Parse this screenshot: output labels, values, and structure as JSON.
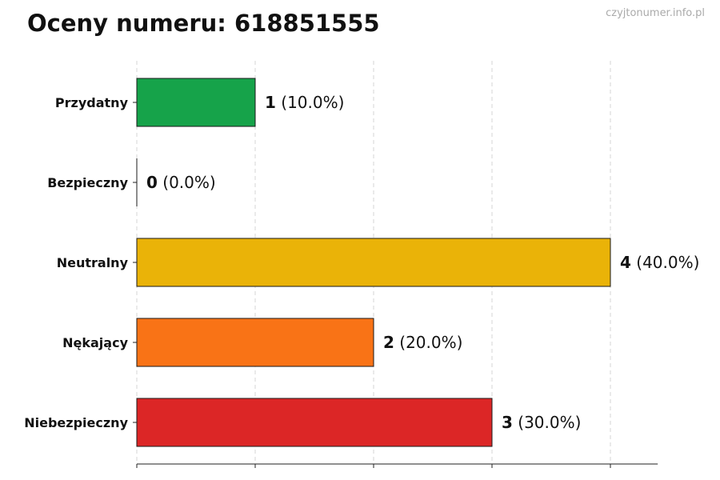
{
  "watermark": "czyjtonumer.info.pl",
  "chart_data": {
    "type": "bar",
    "orientation": "horizontal",
    "title": "Oceny numeru: 618851555",
    "xlabel": "",
    "ylabel": "",
    "xlim": [
      0,
      4.4
    ],
    "grid": true,
    "legend": false,
    "categories": [
      "Przydatny",
      "Bezpieczny",
      "Neutralny",
      "Nękający",
      "Niebezpieczny"
    ],
    "values": [
      1,
      0,
      4,
      2,
      3
    ],
    "percent_labels": [
      "(10.0%)",
      "(0.0%)",
      "(40.0%)",
      "(20.0%)",
      "(30.0%)"
    ],
    "colors": [
      "#16a34a",
      "#22c55e",
      "#eab308",
      "#f97316",
      "#dc2626"
    ]
  }
}
